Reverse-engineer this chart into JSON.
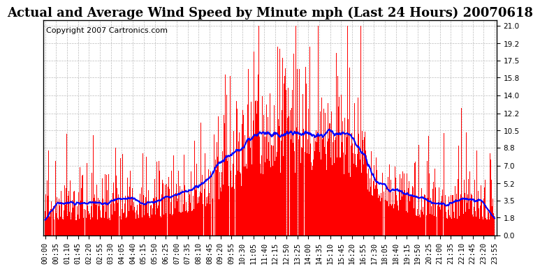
{
  "title": "Actual and Average Wind Speed by Minute mph (Last 24 Hours) 20070618",
  "copyright": "Copyright 2007 Cartronics.com",
  "yticks": [
    0.0,
    1.8,
    3.5,
    5.2,
    7.0,
    8.8,
    10.5,
    12.2,
    14.0,
    15.8,
    17.5,
    19.2,
    21.0
  ],
  "ylim": [
    0.0,
    21.5
  ],
  "bar_color": "#FF0000",
  "line_color": "#0000FF",
  "background_color": "#FFFFFF",
  "grid_color": "#BBBBBB",
  "title_fontsize": 13,
  "copyright_fontsize": 8,
  "tick_fontsize": 7.5,
  "xtick_labels": [
    "00:00",
    "00:35",
    "01:10",
    "01:45",
    "02:20",
    "02:55",
    "03:30",
    "04:05",
    "04:40",
    "05:15",
    "05:50",
    "06:25",
    "07:00",
    "07:35",
    "08:10",
    "08:45",
    "09:20",
    "09:55",
    "10:30",
    "11:05",
    "11:40",
    "12:15",
    "12:50",
    "13:25",
    "14:00",
    "14:35",
    "15:10",
    "15:45",
    "16:20",
    "16:55",
    "17:30",
    "18:05",
    "18:40",
    "19:15",
    "19:50",
    "20:25",
    "21:00",
    "21:35",
    "22:10",
    "22:45",
    "23:20",
    "23:55"
  ]
}
